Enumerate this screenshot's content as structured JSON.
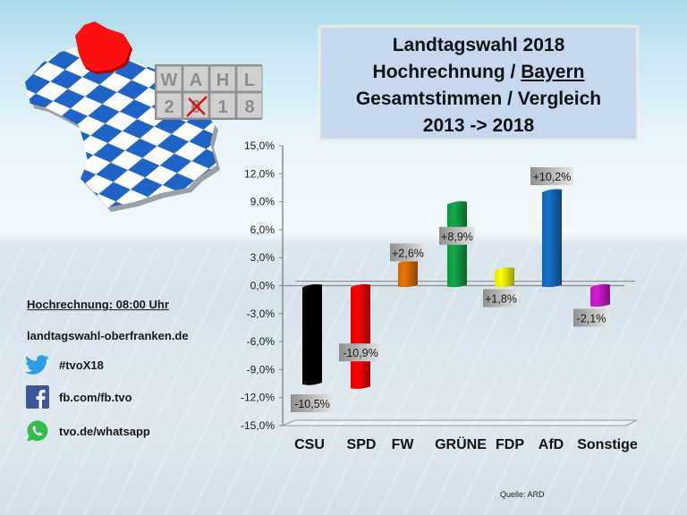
{
  "header": {
    "title_lines": [
      "Landtagswahl 2018",
      "Hochrechnung / ",
      "Bayern",
      "Gesamtstimmen / Vergleich",
      "2013 -> 2018"
    ]
  },
  "logo": {
    "cube_letters_top": [
      "W",
      "A",
      "H",
      "L"
    ],
    "cube_letters_bottom": [
      "2",
      "0",
      "1",
      "8"
    ]
  },
  "sidebar": {
    "projection_time": "Hochrechnung: 08:00 Uhr",
    "website": "landtagswahl-oberfranken.de",
    "social": [
      {
        "icon": "twitter-icon",
        "text": "#tvoX18",
        "color": "#1da1f2"
      },
      {
        "icon": "facebook-icon",
        "text": "fb.com/fb.tvo",
        "color": "#3b5998"
      },
      {
        "icon": "whatsapp-icon",
        "text": "tvo.de/whatsapp",
        "color": "#25d366"
      }
    ]
  },
  "source": "Quelle: ARD",
  "chart_data": {
    "type": "bar",
    "title": "Landtagswahl 2018 Hochrechnung / Bayern Gesamtstimmen / Vergleich 2013 -> 2018",
    "categories": [
      "CSU",
      "SPD",
      "FW",
      "GRÜNE",
      "FDP",
      "AfD",
      "Sonstige"
    ],
    "values": [
      -10.5,
      -10.9,
      2.6,
      8.9,
      1.8,
      10.2,
      -2.1
    ],
    "value_labels": [
      "-10,5%",
      "-10,9%",
      "+2,6%",
      "+8,9%",
      "+1,8%",
      "+10,2%",
      "-2,1%"
    ],
    "colors": [
      "#000000",
      "#ff0000",
      "#e8730a",
      "#12a84a",
      "#ffff00",
      "#1570c8",
      "#d21ad2"
    ],
    "ylim": [
      -15,
      15
    ],
    "yticks": [
      15,
      12,
      9,
      6,
      3,
      0,
      -3,
      -6,
      -9,
      -12,
      -15
    ],
    "ytick_labels": [
      "15,0%",
      "12,0%",
      "9,0%",
      "6,0%",
      "3,0%",
      "0,0%",
      "-3,0%",
      "-6,0%",
      "-9,0%",
      "-12,0%",
      "-15,0%"
    ],
    "xlabel": "",
    "ylabel": "",
    "grid": false,
    "legend": "none"
  }
}
